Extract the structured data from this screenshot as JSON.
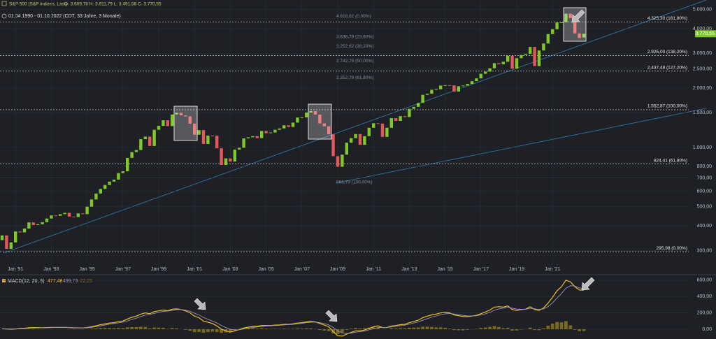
{
  "chart_data": [
    {
      "type": "candlestick",
      "title": "S&P 500 (S&P Indizes, Last)",
      "ohlc_label": "O: 3.609,78 H: 3.911,79 L: 3.491,58 C: 3.770,55",
      "subtitle": "01.04.1990 - 01.10.2022 (CDT, 33 Jahre, 3 Monate)",
      "categories": [
        null,
        null,
        null,
        "Jan '91",
        null,
        null,
        null,
        null,
        null,
        null,
        null,
        "Jan '93",
        null,
        null,
        null,
        null,
        null,
        null,
        null,
        "Jan '95",
        null,
        null,
        null,
        null,
        null,
        null,
        null,
        "Jan '97",
        null,
        null,
        null,
        null,
        null,
        null,
        null,
        "Jan '99",
        null,
        null,
        null,
        null,
        null,
        null,
        null,
        "Jan '01",
        null,
        null,
        null,
        null,
        null,
        null,
        null,
        "Jan '03",
        null,
        null,
        null,
        null,
        null,
        null,
        null,
        "Jan '05",
        null,
        null,
        null,
        null,
        null,
        null,
        null,
        "Jan '07",
        null,
        null,
        null,
        null,
        null,
        null,
        null,
        "Jan '09",
        null,
        null,
        null,
        null,
        null,
        null,
        null,
        "Jan '11",
        null,
        null,
        null,
        null,
        null,
        null,
        null,
        "Jan '13",
        null,
        null,
        null,
        null,
        null,
        null,
        null,
        "Jan '15",
        null,
        null,
        null,
        null,
        null,
        null,
        null,
        "Jan '17",
        null,
        null,
        null,
        null,
        null,
        null,
        null,
        "Jan '19",
        null,
        null,
        null,
        null,
        null,
        null,
        null,
        "Jan '21",
        null,
        null,
        null,
        null,
        null,
        null,
        null
      ],
      "open": [
        339,
        358,
        306,
        330,
        375,
        371,
        388,
        417,
        404,
        408,
        418,
        436,
        452,
        450,
        459,
        466,
        446,
        444,
        463,
        459,
        501,
        545,
        584,
        616,
        645,
        671,
        687,
        741,
        757,
        885,
        947,
        970,
        1102,
        1134,
        1017,
        1229,
        1286,
        1373,
        1283,
        1469,
        1499,
        1455,
        1437,
        1320,
        1160,
        1224,
        1041,
        1148,
        1147,
        990,
        815,
        880,
        848,
        975,
        996,
        1112,
        1126,
        1141,
        1115,
        1212,
        1181,
        1191,
        1229,
        1248,
        1295,
        1270,
        1336,
        1418,
        1421,
        1503,
        1527,
        1468,
        1323,
        1280,
        1166,
        903,
        798,
        919,
        1057,
        1115,
        1169,
        1031,
        1141,
        1258,
        1326,
        1321,
        1131,
        1258,
        1408,
        1362,
        1441,
        1426,
        1569,
        1606,
        1682,
        1848,
        1872,
        1960,
        1972,
        2059,
        2068,
        2063,
        1920,
        2044,
        2060,
        2099,
        2168,
        2239,
        2363,
        2423,
        2519,
        2674,
        2641,
        2718,
        2914,
        2507,
        2834,
        2942,
        2977,
        3231,
        2585,
        3100,
        3363,
        3756,
        3973,
        4298,
        4308,
        4766,
        4530,
        3785,
        3609.78
      ],
      "close": [
        358,
        306,
        330,
        375,
        371,
        388,
        417,
        404,
        408,
        418,
        436,
        452,
        450,
        459,
        466,
        446,
        444,
        463,
        459,
        501,
        545,
        584,
        616,
        645,
        671,
        687,
        741,
        757,
        885,
        947,
        970,
        1102,
        1134,
        1017,
        1229,
        1286,
        1373,
        1283,
        1469,
        1499,
        1455,
        1437,
        1320,
        1160,
        1224,
        1041,
        1148,
        1147,
        990,
        815,
        880,
        848,
        975,
        996,
        1112,
        1126,
        1141,
        1115,
        1212,
        1181,
        1191,
        1229,
        1248,
        1295,
        1270,
        1336,
        1418,
        1421,
        1503,
        1527,
        1468,
        1323,
        1280,
        1166,
        903,
        798,
        919,
        1057,
        1115,
        1169,
        1031,
        1141,
        1258,
        1326,
        1321,
        1131,
        1258,
        1408,
        1362,
        1441,
        1426,
        1569,
        1606,
        1682,
        1848,
        1872,
        1960,
        1972,
        2059,
        2068,
        2063,
        1920,
        2044,
        2060,
        2099,
        2168,
        2239,
        2363,
        2423,
        2519,
        2674,
        2641,
        2718,
        2914,
        2507,
        2834,
        2942,
        2977,
        3231,
        2585,
        3100,
        3363,
        3756,
        3973,
        4298,
        4308,
        4766,
        4530,
        3785,
        3586,
        3770.55
      ],
      "up_color": "#7ec928",
      "down_color": "#e4575a",
      "log_scale": true,
      "ylim": [
        232,
        5590
      ],
      "yticks": [
        {
          "value": 300,
          "label": "300,00"
        },
        {
          "value": 400,
          "label": "400,00"
        },
        {
          "value": 500,
          "label": "500,00"
        },
        {
          "value": 600,
          "label": "600,00"
        },
        {
          "value": 700,
          "label": "700,00"
        },
        {
          "value": 800,
          "label": "800,00"
        },
        {
          "value": 1000,
          "label": "1.000,00"
        },
        {
          "value": 1500,
          "label": "1.500,00"
        },
        {
          "value": 2000,
          "label": "2.000,00"
        },
        {
          "value": 2500,
          "label": "2.500,00"
        },
        {
          "value": 3000,
          "label": "3.000,00"
        },
        {
          "value": 4000,
          "label": "4.000,00"
        },
        {
          "value": 5000,
          "label": "5.000,00"
        }
      ],
      "grid": true,
      "last_label": "3.770,55",
      "levels": [
        {
          "value": 4325.3,
          "label": "4.325,30 (161,80%)"
        },
        {
          "value": 2925.0,
          "label": "2.925,00 (138,20%)"
        },
        {
          "value": 2437.48,
          "label": "2.437,48 (127,20%)"
        },
        {
          "value": 1552.87,
          "label": "1.552,87 (100,00%)"
        },
        {
          "value": 824.41,
          "label": "824,41 (61,80%)"
        },
        {
          "value": 295.98,
          "label": "295,98 (0,00%)"
        }
      ],
      "retracements": [
        {
          "value": 4618.62,
          "label": "4.618,62 (0,00%)"
        },
        {
          "value": 3638.79,
          "label": "3.638,79 (23,60%)"
        },
        {
          "value": 3252.62,
          "label": "3.252,62 (38,20%)"
        },
        {
          "value": 2742.79,
          "label": "2.742,79 (50,00%)"
        },
        {
          "value": 2252.79,
          "label": "2.252,79 (61,80%)"
        },
        {
          "value": 666.79,
          "label": "666,79 (100,00%)"
        }
      ]
    },
    {
      "type": "macd",
      "title": "MACD(12, 26, 9)",
      "ylim": [
        -120,
        650
      ],
      "yticks": [
        {
          "value": 0,
          "label": "0,00"
        },
        {
          "value": 200,
          "label": "200,00"
        },
        {
          "value": 400,
          "label": "400,00"
        },
        {
          "value": 600,
          "label": "600,00"
        }
      ],
      "series": [
        {
          "kind": "line",
          "color": "#f2c01e",
          "value_label": "477,48",
          "values": [
            5,
            2,
            0,
            3,
            8,
            12,
            18,
            20,
            20,
            19,
            20,
            22,
            22,
            23,
            23,
            20,
            17,
            17,
            15,
            20,
            30,
            42,
            55,
            65,
            75,
            80,
            92,
            100,
            125,
            145,
            160,
            185,
            200,
            190,
            215,
            225,
            235,
            225,
            245,
            250,
            240,
            225,
            200,
            160,
            140,
            100,
            85,
            70,
            40,
            0,
            -20,
            -35,
            -20,
            -5,
            15,
            25,
            35,
            35,
            45,
            45,
            45,
            50,
            52,
            60,
            60,
            65,
            75,
            80,
            90,
            95,
            90,
            70,
            50,
            30,
            -30,
            -80,
            -85,
            -60,
            -40,
            -20,
            -20,
            -10,
            10,
            30,
            40,
            20,
            20,
            40,
            45,
            55,
            60,
            80,
            95,
            110,
            140,
            160,
            175,
            185,
            200,
            205,
            200,
            175,
            165,
            155,
            155,
            160,
            170,
            190,
            210,
            235,
            270,
            275,
            270,
            285,
            240,
            230,
            240,
            245,
            275,
            240,
            230,
            260,
            320,
            390,
            470,
            520,
            600,
            580,
            520,
            480,
            477.48
          ]
        },
        {
          "kind": "line",
          "color": "#9c92b8",
          "value_label": "499,73",
          "values": [
            5,
            4,
            2,
            2,
            5,
            8,
            12,
            15,
            17,
            18,
            19,
            20,
            21,
            22,
            22,
            21,
            19,
            18,
            17,
            18,
            23,
            31,
            41,
            51,
            61,
            69,
            78,
            87,
            102,
            119,
            135,
            155,
            173,
            180,
            194,
            206,
            218,
            221,
            231,
            239,
            239,
            233,
            220,
            196,
            174,
            144,
            120,
            100,
            76,
            46,
            20,
            -2,
            -9,
            -7,
            2,
            11,
            21,
            27,
            34,
            38,
            41,
            45,
            48,
            53,
            56,
            60,
            66,
            72,
            79,
            85,
            87,
            80,
            68,
            53,
            20,
            -20,
            -46,
            -52,
            -47,
            -36,
            -30,
            -22,
            -9,
            7,
            20,
            20,
            20,
            28,
            35,
            43,
            50,
            62,
            75,
            89,
            109,
            129,
            147,
            162,
            177,
            188,
            193,
            186,
            178,
            169,
            163,
            162,
            165,
            175,
            189,
            207,
            232,
            249,
            257,
            268,
            257,
            246,
            244,
            244,
            256,
            250,
            242,
            249,
            277,
            322,
            381,
            437,
            502,
            533,
            528,
            505,
            499.73
          ]
        },
        {
          "kind": "bar",
          "color": "#7a6a1c",
          "value_label": "-22,25",
          "values": [
            0,
            -2,
            -2,
            1,
            3,
            4,
            6,
            5,
            3,
            1,
            1,
            2,
            1,
            1,
            1,
            -1,
            -2,
            -1,
            -2,
            2,
            7,
            11,
            14,
            14,
            14,
            11,
            14,
            13,
            23,
            26,
            25,
            30,
            27,
            10,
            21,
            19,
            17,
            4,
            14,
            11,
            1,
            -8,
            -20,
            -36,
            -34,
            -44,
            -35,
            -30,
            -36,
            -46,
            -40,
            -33,
            -11,
            2,
            13,
            14,
            14,
            8,
            11,
            7,
            4,
            5,
            4,
            7,
            4,
            5,
            9,
            8,
            11,
            10,
            3,
            -10,
            -18,
            -23,
            -50,
            -60,
            -39,
            -8,
            7,
            16,
            10,
            12,
            19,
            23,
            20,
            0,
            0,
            12,
            10,
            12,
            10,
            18,
            20,
            21,
            31,
            31,
            28,
            23,
            23,
            17,
            7,
            -11,
            -13,
            -14,
            -8,
            -2,
            5,
            15,
            21,
            28,
            38,
            26,
            13,
            17,
            -17,
            -16,
            -4,
            1,
            19,
            -10,
            -12,
            11,
            43,
            68,
            89,
            83,
            98,
            47,
            -8,
            -25,
            -22.25
          ]
        }
      ]
    }
  ]
}
